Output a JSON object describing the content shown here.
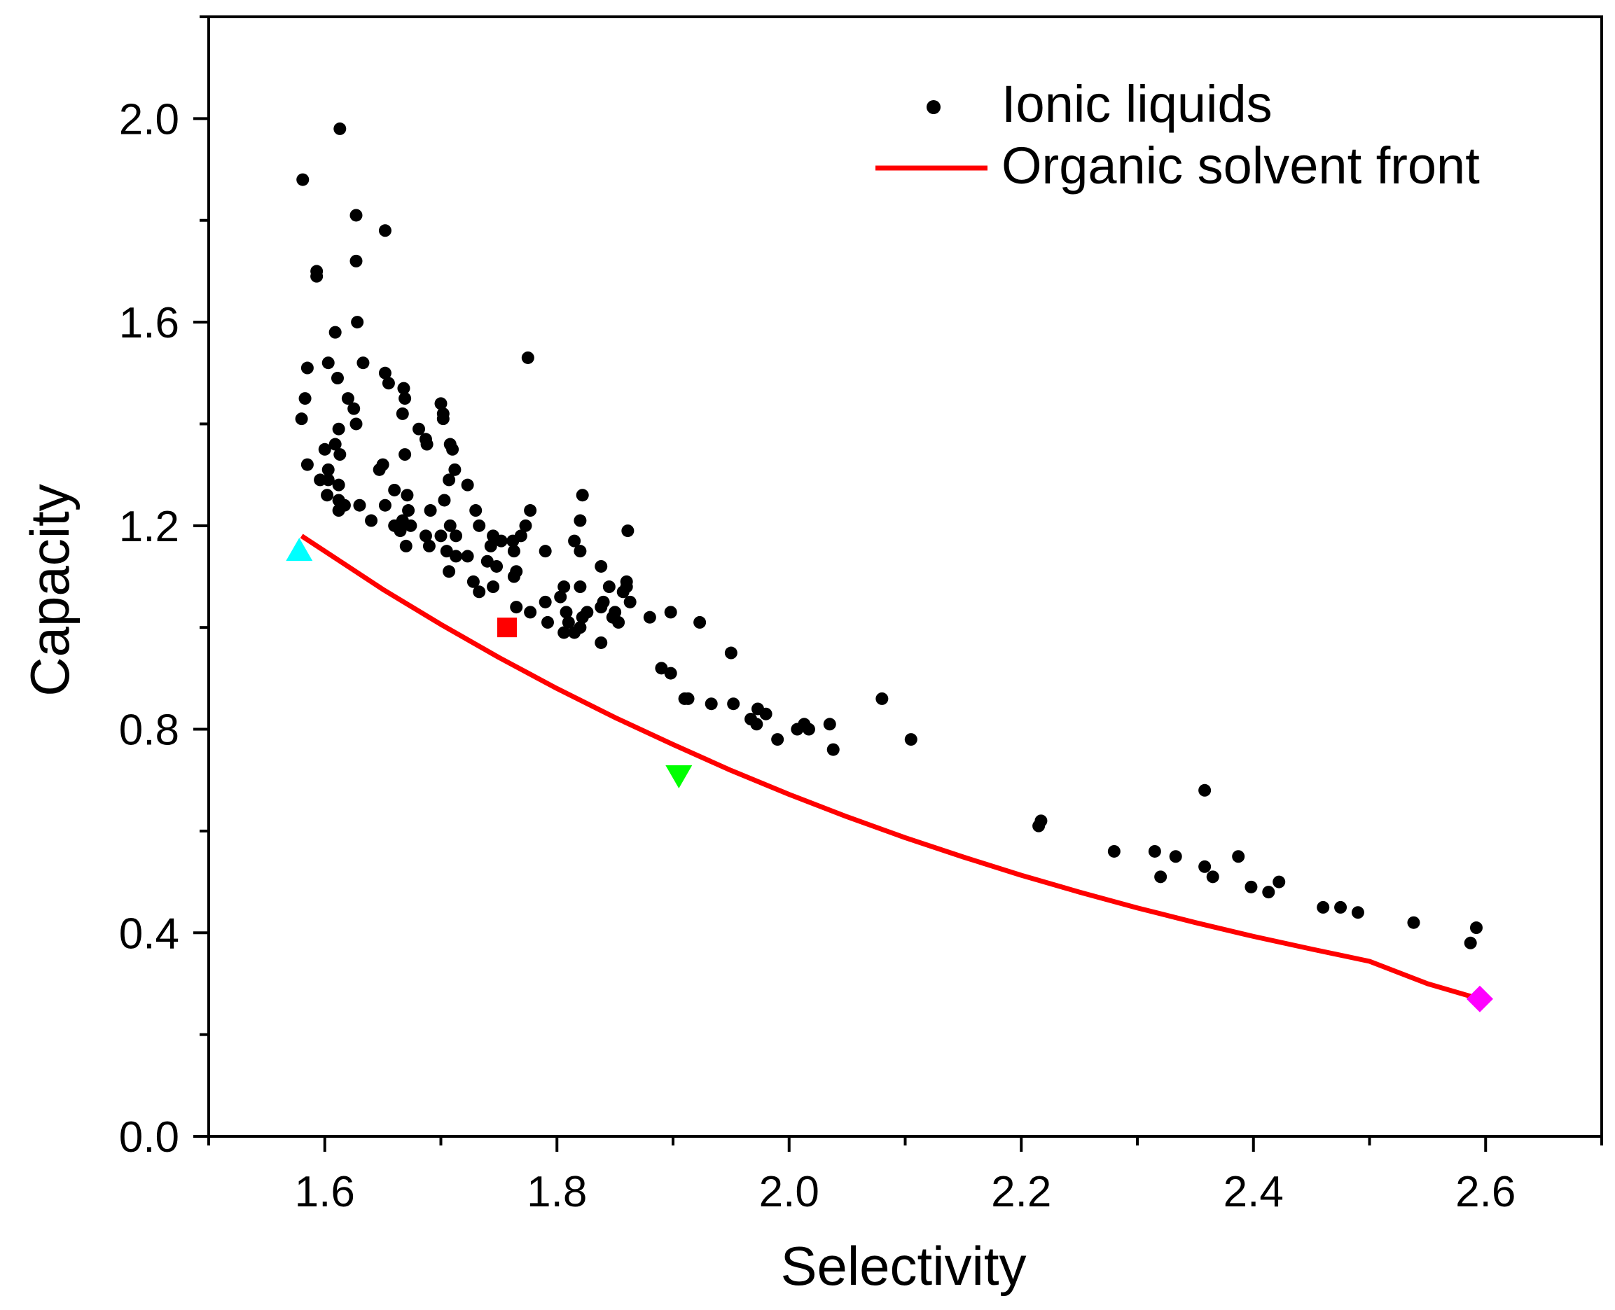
{
  "chart_data": {
    "type": "scatter",
    "title": "",
    "xlabel": "Selectivity",
    "ylabel": "Capacity",
    "xlim": [
      1.5,
      2.7
    ],
    "ylim": [
      0.0,
      2.2
    ],
    "xticks": [
      1.6,
      1.8,
      2.0,
      2.2,
      2.4,
      2.6
    ],
    "xtick_labels": [
      "1.6",
      "1.8",
      "2.0",
      "2.2",
      "2.4",
      "2.6"
    ],
    "yticks": [
      0.0,
      0.4,
      0.8,
      1.2,
      1.6,
      2.0
    ],
    "ytick_labels": [
      "0.0",
      "0.4",
      "0.8",
      "1.2",
      "1.6",
      "2.0"
    ],
    "legend_position": "top-right",
    "series": [
      {
        "name": "Ionic liquids",
        "kind": "scatter",
        "color": "#000000",
        "points": [
          [
            1.613,
            1.98
          ],
          [
            1.581,
            1.88
          ],
          [
            1.627,
            1.81
          ],
          [
            1.652,
            1.78
          ],
          [
            1.593,
            1.7
          ],
          [
            1.593,
            1.69
          ],
          [
            1.627,
            1.72
          ],
          [
            1.628,
            1.6
          ],
          [
            1.609,
            1.58
          ],
          [
            1.775,
            1.53
          ],
          [
            1.633,
            1.52
          ],
          [
            1.603,
            1.52
          ],
          [
            1.585,
            1.51
          ],
          [
            1.652,
            1.5
          ],
          [
            1.611,
            1.49
          ],
          [
            1.655,
            1.48
          ],
          [
            1.668,
            1.47
          ],
          [
            1.583,
            1.45
          ],
          [
            1.62,
            1.45
          ],
          [
            1.669,
            1.45
          ],
          [
            1.7,
            1.44
          ],
          [
            1.625,
            1.43
          ],
          [
            1.702,
            1.42
          ],
          [
            1.667,
            1.42
          ],
          [
            1.58,
            1.41
          ],
          [
            1.702,
            1.41
          ],
          [
            1.627,
            1.4
          ],
          [
            1.612,
            1.39
          ],
          [
            1.681,
            1.39
          ],
          [
            1.687,
            1.37
          ],
          [
            1.609,
            1.36
          ],
          [
            1.708,
            1.36
          ],
          [
            1.688,
            1.36
          ],
          [
            1.6,
            1.35
          ],
          [
            1.71,
            1.35
          ],
          [
            1.613,
            1.34
          ],
          [
            1.669,
            1.34
          ],
          [
            1.585,
            1.32
          ],
          [
            1.65,
            1.32
          ],
          [
            1.603,
            1.31
          ],
          [
            1.647,
            1.31
          ],
          [
            1.712,
            1.31
          ],
          [
            1.596,
            1.29
          ],
          [
            1.603,
            1.29
          ],
          [
            1.707,
            1.29
          ],
          [
            1.612,
            1.28
          ],
          [
            1.723,
            1.28
          ],
          [
            1.66,
            1.27
          ],
          [
            1.671,
            1.26
          ],
          [
            1.602,
            1.26
          ],
          [
            1.612,
            1.25
          ],
          [
            1.703,
            1.25
          ],
          [
            1.617,
            1.24
          ],
          [
            1.63,
            1.24
          ],
          [
            1.652,
            1.24
          ],
          [
            1.672,
            1.23
          ],
          [
            1.691,
            1.23
          ],
          [
            1.612,
            1.23
          ],
          [
            1.73,
            1.23
          ],
          [
            1.667,
            1.21
          ],
          [
            1.64,
            1.21
          ],
          [
            1.66,
            1.2
          ],
          [
            1.708,
            1.2
          ],
          [
            1.674,
            1.2
          ],
          [
            1.733,
            1.2
          ],
          [
            1.777,
            1.23
          ],
          [
            1.822,
            1.26
          ],
          [
            1.82,
            1.21
          ],
          [
            1.861,
            1.19
          ],
          [
            1.665,
            1.19
          ],
          [
            1.7,
            1.18
          ],
          [
            1.713,
            1.18
          ],
          [
            1.687,
            1.18
          ],
          [
            1.745,
            1.18
          ],
          [
            1.752,
            1.17
          ],
          [
            1.769,
            1.18
          ],
          [
            1.773,
            1.2
          ],
          [
            1.762,
            1.17
          ],
          [
            1.815,
            1.17
          ],
          [
            1.67,
            1.16
          ],
          [
            1.69,
            1.16
          ],
          [
            1.743,
            1.16
          ],
          [
            1.705,
            1.15
          ],
          [
            1.763,
            1.15
          ],
          [
            1.79,
            1.15
          ],
          [
            1.713,
            1.14
          ],
          [
            1.723,
            1.14
          ],
          [
            1.74,
            1.13
          ],
          [
            1.82,
            1.15
          ],
          [
            1.838,
            1.12
          ],
          [
            1.748,
            1.12
          ],
          [
            1.707,
            1.11
          ],
          [
            1.765,
            1.11
          ],
          [
            1.763,
            1.1
          ],
          [
            1.86,
            1.09
          ],
          [
            1.728,
            1.09
          ],
          [
            1.806,
            1.08
          ],
          [
            1.82,
            1.08
          ],
          [
            1.845,
            1.08
          ],
          [
            1.86,
            1.08
          ],
          [
            1.733,
            1.07
          ],
          [
            1.745,
            1.08
          ],
          [
            1.857,
            1.07
          ],
          [
            1.803,
            1.06
          ],
          [
            1.79,
            1.05
          ],
          [
            1.84,
            1.05
          ],
          [
            1.863,
            1.05
          ],
          [
            1.777,
            1.03
          ],
          [
            1.808,
            1.03
          ],
          [
            1.826,
            1.03
          ],
          [
            1.838,
            1.04
          ],
          [
            1.85,
            1.03
          ],
          [
            1.88,
            1.02
          ],
          [
            1.898,
            1.03
          ],
          [
            1.765,
            1.04
          ],
          [
            1.923,
            1.01
          ],
          [
            1.792,
            1.01
          ],
          [
            1.81,
            1.01
          ],
          [
            1.822,
            1.02
          ],
          [
            1.848,
            1.02
          ],
          [
            1.853,
            1.01
          ],
          [
            1.815,
            0.99
          ],
          [
            1.806,
            0.99
          ],
          [
            1.82,
            1.0
          ],
          [
            1.838,
            0.97
          ],
          [
            1.95,
            0.95
          ],
          [
            1.89,
            0.92
          ],
          [
            1.898,
            0.91
          ],
          [
            1.91,
            0.86
          ],
          [
            1.913,
            0.86
          ],
          [
            1.933,
            0.85
          ],
          [
            1.952,
            0.85
          ],
          [
            2.08,
            0.86
          ],
          [
            1.967,
            0.82
          ],
          [
            1.973,
            0.84
          ],
          [
            1.98,
            0.83
          ],
          [
            1.972,
            0.81
          ],
          [
            1.99,
            0.78
          ],
          [
            2.007,
            0.8
          ],
          [
            2.013,
            0.81
          ],
          [
            2.017,
            0.8
          ],
          [
            2.035,
            0.81
          ],
          [
            2.038,
            0.76
          ],
          [
            2.105,
            0.78
          ],
          [
            2.358,
            0.68
          ],
          [
            2.217,
            0.62
          ],
          [
            2.215,
            0.61
          ],
          [
            2.28,
            0.56
          ],
          [
            2.315,
            0.56
          ],
          [
            2.333,
            0.55
          ],
          [
            2.387,
            0.55
          ],
          [
            2.358,
            0.53
          ],
          [
            2.32,
            0.51
          ],
          [
            2.365,
            0.51
          ],
          [
            2.422,
            0.5
          ],
          [
            2.398,
            0.49
          ],
          [
            2.413,
            0.48
          ],
          [
            2.46,
            0.45
          ],
          [
            2.475,
            0.45
          ],
          [
            2.49,
            0.44
          ],
          [
            2.538,
            0.42
          ],
          [
            2.592,
            0.41
          ],
          [
            2.587,
            0.38
          ]
        ]
      },
      {
        "name": "Organic solvent front",
        "kind": "line",
        "color": "#ff0000",
        "x": [
          1.58,
          1.65,
          1.7,
          1.75,
          1.8,
          1.85,
          1.9,
          1.95,
          2.0,
          2.05,
          2.1,
          2.15,
          2.2,
          2.25,
          2.3,
          2.35,
          2.4,
          2.45,
          2.5,
          2.55,
          2.595
        ],
        "y": [
          1.18,
          1.075,
          1.006,
          0.941,
          0.88,
          0.823,
          0.77,
          0.719,
          0.672,
          0.628,
          0.587,
          0.549,
          0.513,
          0.48,
          0.449,
          0.42,
          0.393,
          0.368,
          0.344,
          0.3,
          0.27
        ]
      },
      {
        "name": "",
        "kind": "marker",
        "marker": "triangle-up",
        "color": "#00ffff",
        "points": [
          [
            1.578,
            1.15
          ]
        ]
      },
      {
        "name": "",
        "kind": "marker",
        "marker": "square",
        "color": "#ff0000",
        "points": [
          [
            1.757,
            1.0
          ]
        ]
      },
      {
        "name": "",
        "kind": "marker",
        "marker": "triangle-down",
        "color": "#00ff00",
        "points": [
          [
            1.905,
            0.71
          ]
        ]
      },
      {
        "name": "",
        "kind": "marker",
        "marker": "diamond",
        "color": "#ff00ff",
        "points": [
          [
            2.595,
            0.27
          ]
        ]
      }
    ],
    "legend": [
      {
        "label": "Ionic liquids",
        "symbol": "dot",
        "color": "#000000"
      },
      {
        "label": "Organic solvent front",
        "symbol": "line",
        "color": "#ff0000"
      }
    ]
  }
}
